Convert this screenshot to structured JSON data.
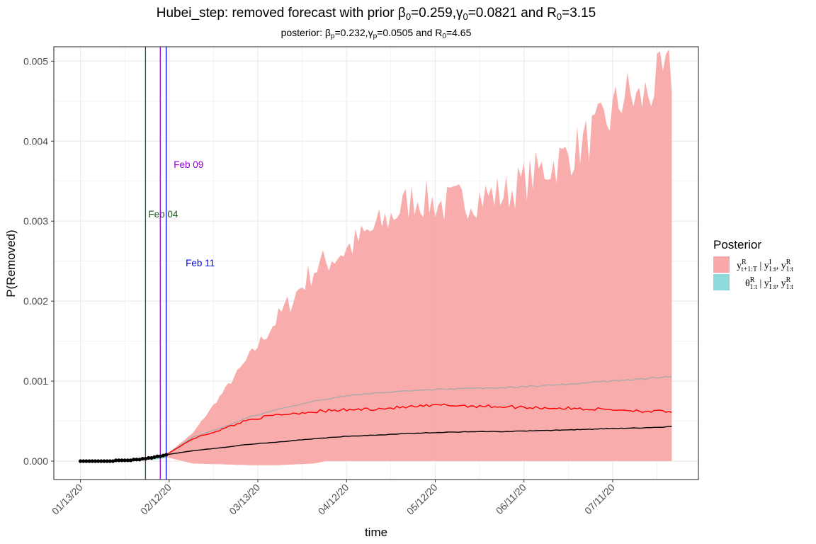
{
  "chart_data": {
    "type": "line",
    "title_parts": [
      "Hubei_step: removed forecast with prior ",
      "β",
      "0",
      "=0.259,",
      "γ",
      "0",
      "=0.0821 and R",
      "0",
      "=3.15"
    ],
    "subtitle_parts": [
      "posterior: ",
      "β",
      "p",
      "=0.232,",
      "γ",
      "p",
      "=0.0505 and R",
      "0",
      "=4.65"
    ],
    "xlabel": "time",
    "ylabel": "P(Removed)",
    "x_start": "2020-01-13",
    "x_end": "2020-07-31",
    "forecast_start": "2020-02-11",
    "ylim": [
      -0.00023,
      0.00518
    ],
    "y_ticks": [
      "0.000",
      "0.001",
      "0.002",
      "0.003",
      "0.004",
      "0.005"
    ],
    "y_tick_values": [
      0,
      0.001,
      0.002,
      0.003,
      0.004,
      0.005
    ],
    "x_ticks": [
      {
        "date": "2020-01-13",
        "label": "01/13/20"
      },
      {
        "date": "2020-02-12",
        "label": "02/12/20"
      },
      {
        "date": "2020-03-13",
        "label": "03/13/20"
      },
      {
        "date": "2020-04-12",
        "label": "04/12/20"
      },
      {
        "date": "2020-05-12",
        "label": "05/12/20"
      },
      {
        "date": "2020-06-11",
        "label": "06/11/20"
      },
      {
        "date": "2020-07-11",
        "label": "07/11/20"
      }
    ],
    "grid": true,
    "vlines": [
      {
        "date": "2020-02-04",
        "label": "Feb 04",
        "color": "#1a5c1a",
        "label_y": 0.00308
      },
      {
        "date": "2020-02-09",
        "label": "Feb 09",
        "color": "#9400d3",
        "label_y": 0.0037
      },
      {
        "date": "2020-02-11",
        "label": "Feb 11",
        "color": "#0000ff",
        "label_y": 0.00247
      }
    ],
    "observed_points": {
      "x_from": "2020-01-13",
      "x_to": "2020-02-11",
      "y": [
        0.0,
        0.0,
        0.0,
        0.0,
        0.0,
        0.0,
        0.0,
        0.0,
        0.0,
        0.0,
        0.0,
        0.0,
        1e-05,
        1e-05,
        1e-05,
        1e-05,
        1e-05,
        1e-05,
        2e-05,
        2e-05,
        2e-05,
        3e-05,
        3e-05,
        4e-05,
        4e-05,
        5e-05,
        6e-05,
        6e-05,
        7e-05,
        8e-05
      ]
    },
    "band_upper": {
      "x": [
        "2020-02-11",
        "2020-02-20",
        "2020-03-01",
        "2020-03-10",
        "2020-03-20",
        "2020-04-01",
        "2020-04-12",
        "2020-04-25",
        "2020-05-05",
        "2020-05-15",
        "2020-05-25",
        "2020-06-05",
        "2020-06-15",
        "2020-06-25",
        "2020-07-05",
        "2020-07-10",
        "2020-07-15",
        "2020-07-20",
        "2020-07-25",
        "2020-07-31"
      ],
      "y": [
        8e-05,
        0.00035,
        0.00085,
        0.0013,
        0.0018,
        0.0024,
        0.00265,
        0.003,
        0.0033,
        0.0032,
        0.0033,
        0.00335,
        0.0036,
        0.0038,
        0.0041,
        0.0043,
        0.0046,
        0.0045,
        0.0047,
        0.00485
      ]
    },
    "band_lower": {
      "x": [
        "2020-02-11",
        "2020-02-20",
        "2020-03-01",
        "2020-03-10",
        "2020-03-20",
        "2020-04-01",
        "2020-04-05",
        "2020-07-31"
      ],
      "y": [
        5e-05,
        -3e-05,
        -4e-05,
        -5e-05,
        -5e-05,
        -3e-05,
        0.0,
        0.0
      ]
    },
    "series": [
      {
        "color": "#aaaaaa",
        "x": [
          "2020-02-11",
          "2020-02-20",
          "2020-03-01",
          "2020-03-10",
          "2020-03-20",
          "2020-04-01",
          "2020-04-12",
          "2020-04-25",
          "2020-05-05",
          "2020-05-15",
          "2020-05-25",
          "2020-06-05",
          "2020-06-15",
          "2020-06-25",
          "2020-07-05",
          "2020-07-15",
          "2020-07-25",
          "2020-07-31"
        ],
        "y": [
          8e-05,
          0.0003,
          0.00042,
          0.00055,
          0.00065,
          0.00075,
          0.00082,
          0.00086,
          0.00088,
          0.0009,
          0.00091,
          0.00092,
          0.00094,
          0.00096,
          0.00099,
          0.00101,
          0.00104,
          0.00106
        ]
      },
      {
        "color": "#ff0000",
        "x": [
          "2020-02-11",
          "2020-02-20",
          "2020-03-01",
          "2020-03-10",
          "2020-03-20",
          "2020-04-01",
          "2020-04-12",
          "2020-04-25",
          "2020-05-05",
          "2020-05-15",
          "2020-05-25",
          "2020-06-05",
          "2020-06-15",
          "2020-06-25",
          "2020-07-05",
          "2020-07-15",
          "2020-07-25",
          "2020-07-31"
        ],
        "y": [
          8e-05,
          0.00028,
          0.0004,
          0.00052,
          0.00058,
          0.00062,
          0.00064,
          0.00066,
          0.00068,
          0.0007,
          0.00069,
          0.00068,
          0.00067,
          0.00066,
          0.00065,
          0.00064,
          0.00062,
          0.00062
        ]
      },
      {
        "color": "#000000",
        "x": [
          "2020-02-11",
          "2020-02-20",
          "2020-03-01",
          "2020-03-10",
          "2020-03-20",
          "2020-04-01",
          "2020-04-12",
          "2020-04-25",
          "2020-05-05",
          "2020-05-15",
          "2020-05-25",
          "2020-06-05",
          "2020-06-15",
          "2020-06-25",
          "2020-07-05",
          "2020-07-15",
          "2020-07-25",
          "2020-07-31"
        ],
        "y": [
          8e-05,
          0.00013,
          0.00017,
          0.00021,
          0.00024,
          0.00028,
          0.00031,
          0.00033,
          0.00035,
          0.00036,
          0.00037,
          0.00037,
          0.00038,
          0.00039,
          0.0004,
          0.00041,
          0.00042,
          0.00043
        ]
      }
    ],
    "legend": {
      "title": "Posterior",
      "placement": "right",
      "entries": [
        {
          "color": "#f8a8a8",
          "label_parts": [
            "y",
            "R",
            "t+1:T",
            " | y",
            "I",
            "1:t",
            ", y",
            "R",
            "1:t"
          ]
        },
        {
          "color": "#8dd9dc",
          "label_parts": [
            "θ",
            "R",
            "1:t",
            " | y",
            "I",
            "1:t",
            ", y",
            "R",
            "1:t"
          ]
        }
      ]
    },
    "colors": {
      "band": "#f8a8a8",
      "cyan_band": "#8dd9dc",
      "grid": "#ebebeb",
      "panel_border": "#333333"
    }
  }
}
